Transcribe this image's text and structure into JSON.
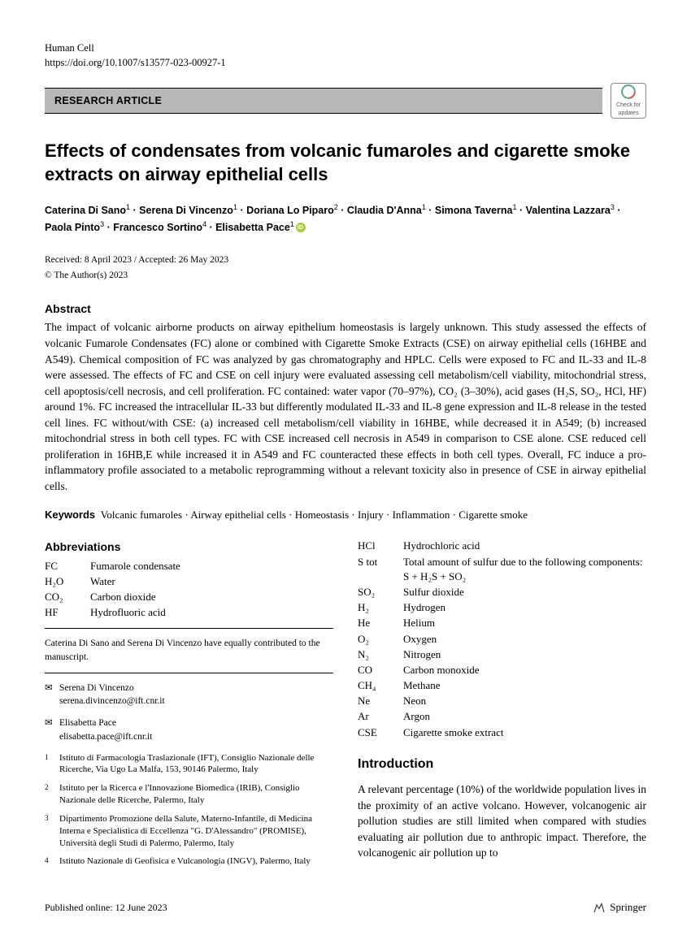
{
  "meta": {
    "journal": "Human Cell",
    "doi": "https://doi.org/10.1007/s13577-023-00927-1",
    "article_type": "RESEARCH ARTICLE",
    "updates_badge_label": "Check for updates"
  },
  "title": "Effects of condensates from volcanic fumaroles and cigarette smoke extracts on airway epithelial cells",
  "authors_html": "Caterina Di Sano<sup>1</sup> · Serena Di Vincenzo<sup>1</sup> · Doriana Lo Piparo<sup>2</sup> · Claudia D'Anna<sup>1</sup> · Simona Taverna<sup>1</sup> · Valentina Lazzara<sup>3</sup> · Paola Pinto<sup>3</sup> · Francesco Sortino<sup>4</sup> · Elisabetta Pace<sup>1</sup>",
  "dates": "Received: 8 April 2023 / Accepted: 26 May 2023",
  "copyright": "© The Author(s) 2023",
  "abstract": {
    "heading": "Abstract",
    "body": "The impact of volcanic airborne products on airway epithelium homeostasis is largely unknown. This study assessed the effects of volcanic Fumarole Condensates (FC) alone or combined with Cigarette Smoke Extracts (CSE) on airway epithelial cells (16HBE and A549). Chemical composition of FC was analyzed by gas chromatography and HPLC. Cells were exposed to FC and IL-33 and IL-8 were assessed. The effects of FC and CSE on cell injury were evaluated assessing cell metabolism/cell viability, mitochondrial stress, cell apoptosis/cell necrosis, and cell proliferation. FC contained: water vapor (70–97%), CO₂ (3–30%), acid gases (H₂S, SO₂, HCl, HF) around 1%. FC increased the intracellular IL-33 but differently modulated IL-33 and IL-8 gene expression and IL-8 release in the tested cell lines. FC without/with CSE: (a) increased cell metabolism/cell viability in 16HBE, while decreased it in A549; (b) increased mitochondrial stress in both cell types. FC with CSE increased cell necrosis in A549 in comparison to CSE alone. CSE reduced cell proliferation in 16HB,E while increased it in A549 and FC counteracted these effects in both cell types. Overall, FC induce a pro-inflammatory profile associated to a metabolic reprogramming without a relevant toxicity also in presence of CSE in airway epithelial cells."
  },
  "keywords": {
    "label": "Keywords",
    "text": "Volcanic fumaroles · Airway epithelial cells · Homeostasis · Injury · Inflammation · Cigarette smoke"
  },
  "abbreviations": {
    "heading": "Abbreviations",
    "left": [
      {
        "term": "FC",
        "def": "Fumarole condensate"
      },
      {
        "term": "H₂O",
        "def": "Water"
      },
      {
        "term": "CO₂",
        "def": "Carbon dioxide"
      },
      {
        "term": "HF",
        "def": "Hydrofluoric acid"
      }
    ],
    "right": [
      {
        "term": "HCl",
        "def": "Hydrochloric acid"
      },
      {
        "term": "S tot",
        "def": "Total amount of sulfur due to the following components: S + H₂S + SO₂"
      },
      {
        "term": "SO₂",
        "def": "Sulfur dioxide"
      },
      {
        "term": "H₂",
        "def": "Hydrogen"
      },
      {
        "term": "He",
        "def": "Helium"
      },
      {
        "term": "O₂",
        "def": "Oxygen"
      },
      {
        "term": "N₂",
        "def": "Nitrogen"
      },
      {
        "term": "CO",
        "def": "Carbon monoxide"
      },
      {
        "term": "CH₄",
        "def": "Methane"
      },
      {
        "term": "Ne",
        "def": "Neon"
      },
      {
        "term": "Ar",
        "def": "Argon"
      },
      {
        "term": "CSE",
        "def": "Cigarette smoke extract"
      }
    ]
  },
  "contrib_note": "Caterina Di Sano and Serena Di Vincenzo have equally contributed to the manuscript.",
  "corresponding": [
    {
      "name": "Serena Di Vincenzo",
      "email": "serena.divincenzo@ift.cnr.it"
    },
    {
      "name": "Elisabetta Pace",
      "email": "elisabetta.pace@ift.cnr.it"
    }
  ],
  "affiliations": [
    {
      "num": "1",
      "text": "Istituto di Farmacologia Traslazionale (IFT), Consiglio Nazionale delle Ricerche, Via Ugo La Malfa, 153, 90146 Palermo, Italy"
    },
    {
      "num": "2",
      "text": "Istituto per la Ricerca e l'Innovazione Biomedica (IRIB), Consiglio Nazionale delle Ricerche, Palermo, Italy"
    },
    {
      "num": "3",
      "text": "Dipartimento Promozione della Salute, Materno-Infantile, di Medicina Interna e Specialistica di Eccellenza \"G. D'Alessandro\" (PROMISE), Università degli Studi di Palermo, Palermo, Italy"
    },
    {
      "num": "4",
      "text": "Istituto Nazionale di Geofisica e Vulcanologia (INGV), Palermo, Italy"
    }
  ],
  "introduction": {
    "heading": "Introduction",
    "body": "A relevant percentage (10%) of the worldwide population lives in the proximity of an active volcano. However, volcanogenic air pollution studies are still limited when compared with studies evaluating air pollution due to anthropic impact. Therefore, the volcanogenic air pollution up to"
  },
  "footer": {
    "published": "Published online: 12 June 2023",
    "publisher": "Springer"
  },
  "colors": {
    "banner_bg": "#b8b8b8",
    "orcid": "#a6ce39",
    "text": "#000000"
  }
}
